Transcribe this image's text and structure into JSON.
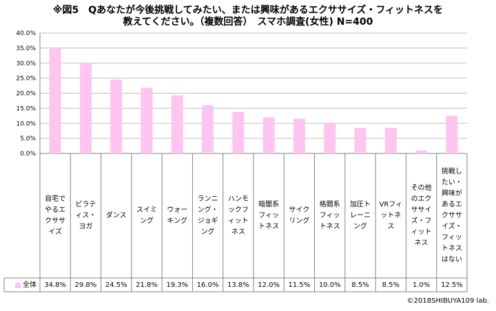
{
  "title_line1": "※図5　Qあなたが今後挑戦してみたい、または興味があるエクササイズ・フィットネスを",
  "title_line2": "教えてください。（複数回答）　スマホ調査(女性) N=400",
  "copyright": "©2018SHIBUYA109 lab.",
  "colors": {
    "bar": "#ffc4f0",
    "grid": "#bfbfbf",
    "axis": "#808080"
  },
  "chart_data": {
    "type": "bar",
    "ylim": [
      0,
      40
    ],
    "yticks": [
      "0.0%",
      "5.0%",
      "10.0%",
      "15.0%",
      "20.0%",
      "25.0%",
      "30.0%",
      "35.0%",
      "40.0%"
    ],
    "categories": [
      "自宅でやるエクササイズ",
      "ピラティス・ヨガ",
      "ダンス",
      "スイミング",
      "ウォーキング",
      "ランニング・ジョギング",
      "ハンモックフィットネス",
      "暗闇系フィットネス",
      "サイクリング",
      "格闘系フィットネス",
      "加圧トレーニング",
      "VRフィットネス",
      "その他のエクササイズ・フィットネス",
      "挑戦したい・興味があるエクササイズ・フィットネスはない"
    ],
    "series": [
      {
        "name": "全体",
        "values": [
          34.8,
          29.8,
          24.5,
          21.8,
          19.3,
          16.0,
          13.8,
          12.0,
          11.5,
          10.0,
          8.5,
          8.5,
          1.0,
          12.5
        ],
        "labels": [
          "34.8%",
          "29.8%",
          "24.5%",
          "21.8%",
          "19.3%",
          "16.0%",
          "13.8%",
          "12.0%",
          "11.5%",
          "10.0%",
          "8.5%",
          "8.5%",
          "1.0%",
          "12.5%"
        ]
      }
    ]
  }
}
